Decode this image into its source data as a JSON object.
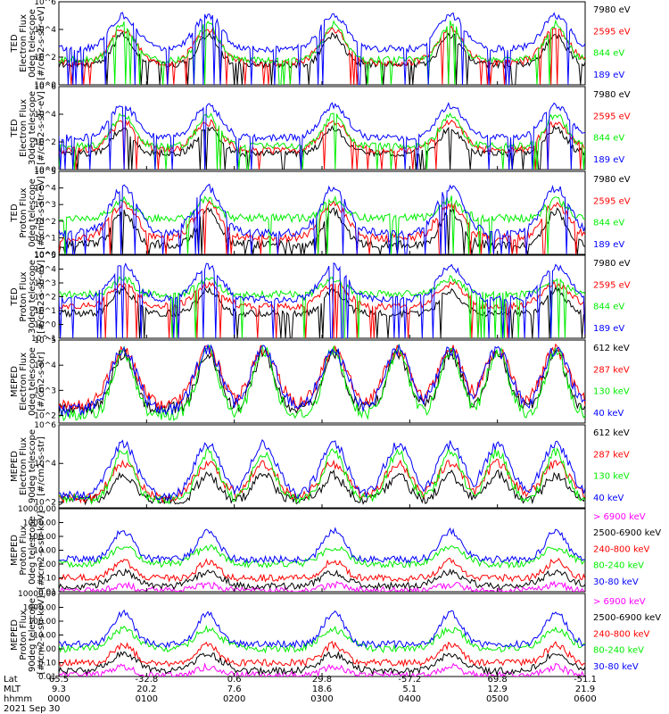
{
  "chart_data": {
    "type": "line",
    "date": "2021 Sep 30",
    "footer": {
      "row_labels": [
        "Lat",
        "MLT",
        "hhmm"
      ],
      "columns": [
        {
          "lat": "65.5",
          "mlt": "9.3",
          "hhmm": "0000"
        },
        {
          "lat": "-32.8",
          "mlt": "20.2",
          "hhmm": "0100"
        },
        {
          "lat": "0.6",
          "mlt": "7.6",
          "hhmm": "0200"
        },
        {
          "lat": "29.8",
          "mlt": "18.6",
          "hhmm": "0300"
        },
        {
          "lat": "-57.2",
          "mlt": "5.1",
          "hhmm": "0400"
        },
        {
          "lat": "69.8",
          "mlt": "12.9",
          "hhmm": "0500"
        },
        {
          "lat": "-51.1",
          "mlt": "21.9",
          "hhmm": "0600"
        }
      ]
    },
    "panels": [
      {
        "ylabel": [
          "TED",
          "Electron Flux",
          "0deg telescope",
          "[#/cm2-s-str-eV]"
        ],
        "scale": "log",
        "ylim": [
          1,
          1000000
        ],
        "ticks": [
          {
            "v": 1,
            "t": "10^0"
          },
          {
            "v": 100,
            "t": "10^2"
          },
          {
            "v": 10000,
            "t": "10^4"
          },
          {
            "v": 1000000,
            "t": "10^6"
          }
        ],
        "series": [
          {
            "name": "7980 eV",
            "color": "#000000",
            "base": 1.5,
            "peak": 3.6
          },
          {
            "name": "2595 eV",
            "color": "#ff0000",
            "base": 1.6,
            "peak": 4.0
          },
          {
            "name": "844 eV",
            "color": "#00ee00",
            "base": 1.8,
            "peak": 4.4
          },
          {
            "name": "189 eV",
            "color": "#0000ff",
            "base": 2.6,
            "peak": 5.0
          }
        ]
      },
      {
        "ylabel": [
          "TED",
          "Electron Flux",
          "30deg telescope",
          "[#/cm2-s-str-eV]"
        ],
        "scale": "log",
        "ylim": [
          1,
          1000000
        ],
        "ticks": [
          {
            "v": 1,
            "t": "10^0"
          },
          {
            "v": 100,
            "t": "10^2"
          },
          {
            "v": 10000,
            "t": "10^4"
          },
          {
            "v": 1000000,
            "t": "10^6"
          }
        ],
        "series": [
          {
            "name": "7980 eV",
            "color": "#000000",
            "base": 1.2,
            "peak": 3.0
          },
          {
            "name": "2595 eV",
            "color": "#ff0000",
            "base": 1.4,
            "peak": 3.4
          },
          {
            "name": "844 eV",
            "color": "#00ee00",
            "base": 1.7,
            "peak": 4.0
          },
          {
            "name": "189 eV",
            "color": "#0000ff",
            "base": 2.3,
            "peak": 4.6
          }
        ]
      },
      {
        "ylabel": [
          "TED",
          "Proton Flux",
          "0deg telescope",
          "[#/cm2-s-str-eV]"
        ],
        "scale": "log",
        "ylim": [
          1,
          100000
        ],
        "ticks": [
          {
            "v": 1,
            "t": "10^0"
          },
          {
            "v": 10,
            "t": "10^1"
          },
          {
            "v": 100,
            "t": "10^2"
          },
          {
            "v": 1000,
            "t": "10^3"
          },
          {
            "v": 10000,
            "t": "10^4"
          },
          {
            "v": 100000,
            "t": "10^5"
          }
        ],
        "series": [
          {
            "name": "7980 eV",
            "color": "#000000",
            "base": 0.6,
            "peak": 2.6
          },
          {
            "name": "2595 eV",
            "color": "#ff0000",
            "base": 1.0,
            "peak": 3.0
          },
          {
            "name": "844 eV",
            "color": "#00ee00",
            "base": 2.2,
            "peak": 3.3
          },
          {
            "name": "189 eV",
            "color": "#0000ff",
            "base": 1.3,
            "peak": 4.0
          }
        ]
      },
      {
        "ylabel": [
          "TED",
          "Proton Flux",
          "30deg telescope",
          "[#/cm2-s-str-eV]"
        ],
        "scale": "log",
        "ylim": [
          0.1,
          100000
        ],
        "ticks": [
          {
            "v": 0.1,
            "t": "10^-1"
          },
          {
            "v": 1,
            "t": "10^0"
          },
          {
            "v": 10,
            "t": "10^1"
          },
          {
            "v": 100,
            "t": "10^2"
          },
          {
            "v": 1000,
            "t": "10^3"
          },
          {
            "v": 10000,
            "t": "10^4"
          },
          {
            "v": 100000,
            "t": "10^5"
          }
        ],
        "series": [
          {
            "name": "7980 eV",
            "color": "#000000",
            "base": 0.8,
            "peak": 2.5
          },
          {
            "name": "2595 eV",
            "color": "#ff0000",
            "base": 1.3,
            "peak": 2.9
          },
          {
            "name": "844 eV",
            "color": "#00ee00",
            "base": 2.2,
            "peak": 3.3
          },
          {
            "name": "189 eV",
            "color": "#0000ff",
            "base": 1.8,
            "peak": 4.2
          }
        ]
      },
      {
        "ylabel": [
          "MEPED",
          "Electron Flux",
          "0deg telescope",
          "[#/cm2-s-str]"
        ],
        "scale": "log",
        "ylim": [
          50,
          100000
        ],
        "ticks": [
          {
            "v": 100,
            "t": "10^2"
          },
          {
            "v": 1000,
            "t": "10^3"
          },
          {
            "v": 10000,
            "t": "10^4"
          },
          {
            "v": 100000,
            "t": "10^5"
          }
        ],
        "series": [
          {
            "name": "612 keV",
            "color": "#000000",
            "base": 2.3,
            "peak": 4.5
          },
          {
            "name": "287 keV",
            "color": "#ff0000",
            "base": 2.4,
            "peak": 4.6
          },
          {
            "name": "130 keV",
            "color": "#00ee00",
            "base": 2.05,
            "peak": 4.6
          },
          {
            "name": "40 keV",
            "color": "#0000ff",
            "base": 2.2,
            "peak": 4.6
          }
        ]
      },
      {
        "ylabel": [
          "MEPED",
          "Electron Flux",
          "90deg telescope",
          "[#/cm2-s-str]"
        ],
        "scale": "log",
        "ylim": [
          50,
          1000000
        ],
        "ticks": [
          {
            "v": 100,
            "t": "10^2"
          },
          {
            "v": 10000,
            "t": "10^4"
          },
          {
            "v": 1000000,
            "t": "10^6"
          }
        ],
        "series": [
          {
            "name": "612 keV",
            "color": "#000000",
            "base": 2.1,
            "peak": 3.4
          },
          {
            "name": "287 keV",
            "color": "#ff0000",
            "base": 2.2,
            "peak": 4.0
          },
          {
            "name": "130 keV",
            "color": "#00ee00",
            "base": 2.15,
            "peak": 4.6
          },
          {
            "name": "40 keV",
            "color": "#0000ff",
            "base": 2.3,
            "peak": 5.0
          }
        ]
      },
      {
        "ylabel": [
          "MEPED",
          "Proton Flux",
          "0deg telescope",
          "[#/cm2-s-str-keV]"
        ],
        "scale": "log",
        "ylim": [
          0.01,
          10000
        ],
        "ticks": [
          {
            "v": 0.01,
            "t": "0.01"
          },
          {
            "v": 0.1,
            "t": "0.10"
          },
          {
            "v": 1,
            "t": "1.00"
          },
          {
            "v": 10,
            "t": "10.00"
          },
          {
            "v": 100,
            "t": "100.00"
          },
          {
            "v": 1000,
            "t": "1000.00"
          },
          {
            "v": 10000,
            "t": "10000.00"
          }
        ],
        "series": [
          {
            "name": "> 6900 keV",
            "color": "#ff00ff",
            "base": -1.9,
            "peak": -1.5
          },
          {
            "name": "2500-6900 keV",
            "color": "#000000",
            "base": -1.6,
            "peak": -0.6
          },
          {
            "name": "240-800 keV",
            "color": "#ff0000",
            "base": -1.0,
            "peak": 0.2
          },
          {
            "name": "80-240 keV",
            "color": "#00ee00",
            "base": 0.0,
            "peak": 1.2
          },
          {
            "name": "30-80 keV",
            "color": "#0000ff",
            "base": 0.35,
            "peak": 2.4
          }
        ]
      },
      {
        "ylabel": [
          "MEPED",
          "Proton Flux",
          "90deg telescope",
          "[#/cm2-s-str-keV]"
        ],
        "scale": "log",
        "ylim": [
          0.01,
          10000
        ],
        "ticks": [
          {
            "v": 0.01,
            "t": "0.01"
          },
          {
            "v": 0.1,
            "t": "0.10"
          },
          {
            "v": 1,
            "t": "1.00"
          },
          {
            "v": 10,
            "t": "10.00"
          },
          {
            "v": 100,
            "t": "100.00"
          },
          {
            "v": 1000,
            "t": "1000.00"
          },
          {
            "v": 10000,
            "t": "10000.00"
          }
        ],
        "series": [
          {
            "name": "> 6900 keV",
            "color": "#ff00ff",
            "base": -1.9,
            "peak": -1.3
          },
          {
            "name": "2500-6900 keV",
            "color": "#000000",
            "base": -1.6,
            "peak": -0.4
          },
          {
            "name": "240-800 keV",
            "color": "#ff0000",
            "base": -1.0,
            "peak": 0.3
          },
          {
            "name": "80-240 keV",
            "color": "#00ee00",
            "base": 0.0,
            "peak": 1.4
          },
          {
            "name": "30-80 keV",
            "color": "#0000ff",
            "base": 0.35,
            "peak": 2.6
          }
        ]
      }
    ]
  }
}
